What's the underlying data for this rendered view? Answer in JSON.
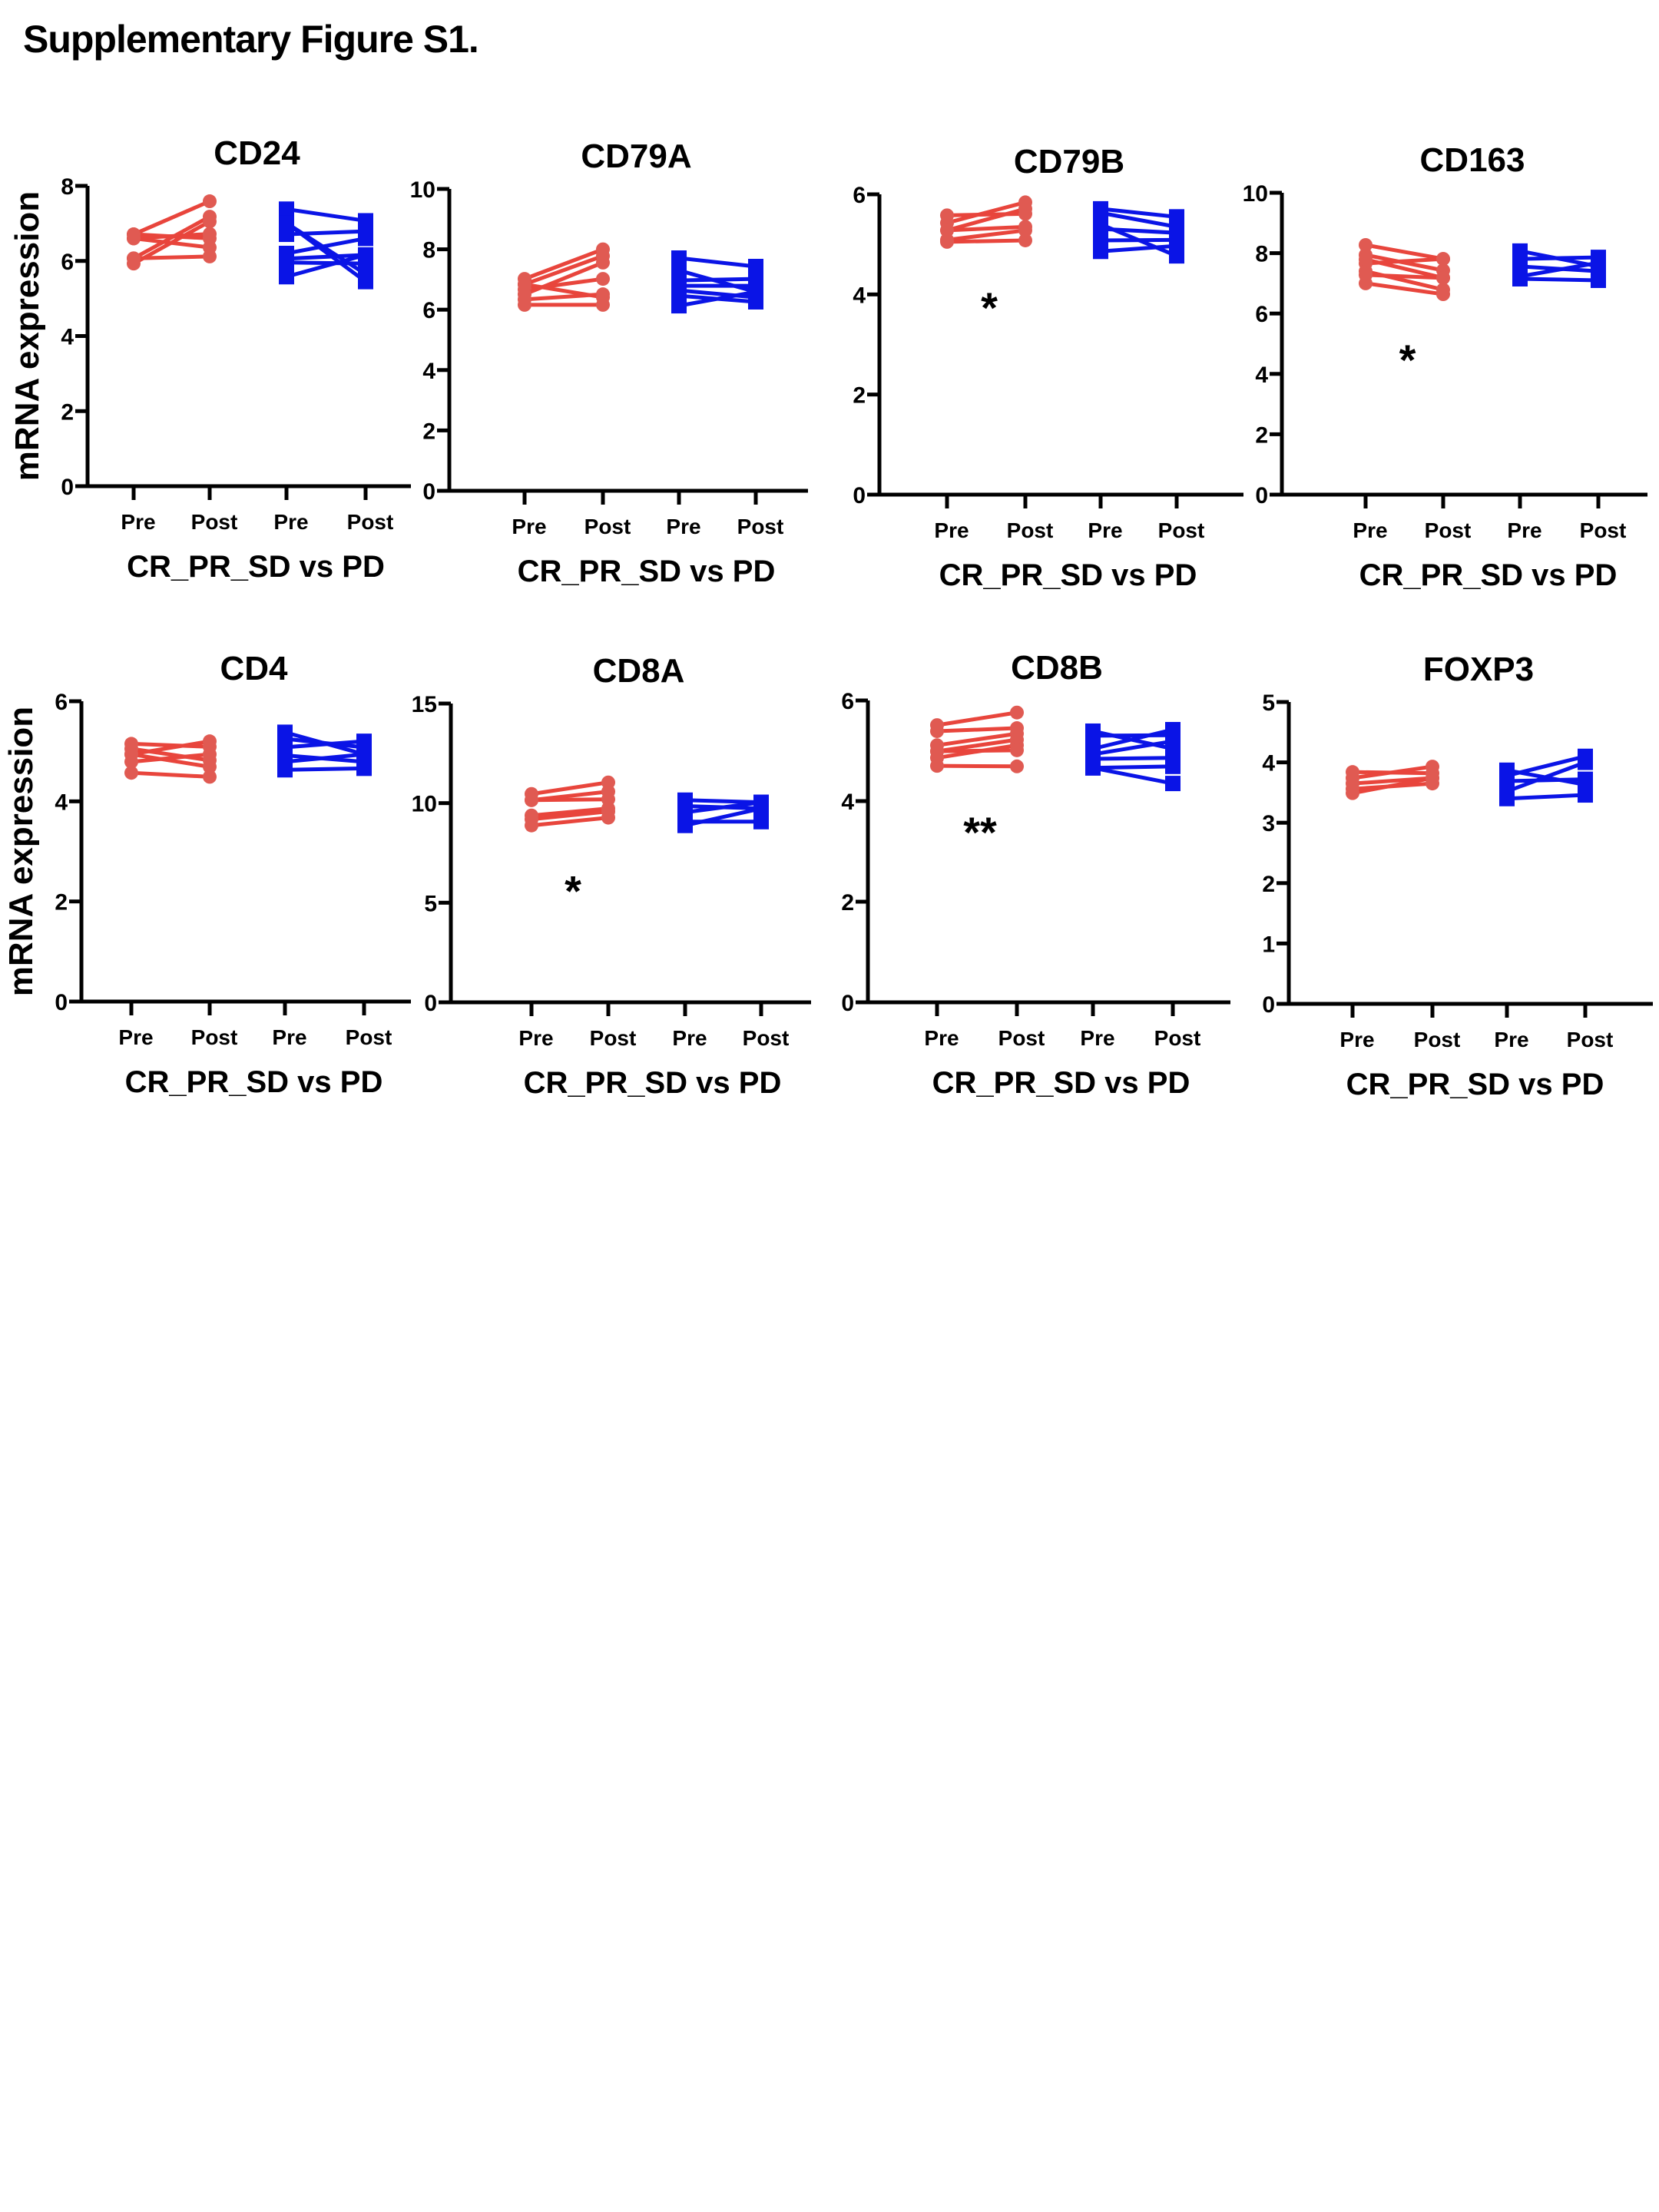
{
  "figure_title": "Supplementary Figure S1.",
  "colors": {
    "responders": "#e8453c",
    "responders_marker": "#e05a52",
    "progressors": "#0a14e6",
    "axis": "#000000"
  },
  "chart_data": [
    {
      "type": "line",
      "title": "CD24",
      "ylabel": "mRNA expression",
      "xlabel": "CR_PR_SD vs PD",
      "categories": [
        "Pre",
        "Post",
        "Pre",
        "Post"
      ],
      "ylim": [
        0,
        8
      ],
      "yticks": [
        0,
        2,
        4,
        6,
        8
      ],
      "significance": "",
      "series": [
        {
          "name": "CR_PR_SD",
          "marker": "circle",
          "pairs": [
            [
              6.71,
              7.59
            ],
            [
              6.6,
              6.72
            ],
            [
              6.71,
              6.6
            ],
            [
              6.07,
              7.18
            ],
            [
              5.93,
              7.05
            ],
            [
              6.6,
              6.36
            ],
            [
              6.07,
              6.12
            ]
          ]
        },
        {
          "name": "PD",
          "marker": "square",
          "pairs": [
            [
              7.38,
              7.07
            ],
            [
              7.01,
              5.65
            ],
            [
              7.01,
              5.45
            ],
            [
              6.71,
              6.79
            ],
            [
              6.2,
              6.6
            ],
            [
              6.06,
              6.16
            ],
            [
              5.96,
              5.93
            ],
            [
              5.58,
              6.16
            ]
          ]
        }
      ]
    },
    {
      "type": "line",
      "title": "CD79A",
      "ylabel": "",
      "xlabel": "CR_PR_SD vs PD",
      "categories": [
        "Pre",
        "Post",
        "Pre",
        "Post"
      ],
      "ylim": [
        0,
        10
      ],
      "yticks": [
        0,
        2,
        4,
        6,
        8,
        10
      ],
      "significance": "",
      "series": [
        {
          "name": "CR_PR_SD",
          "marker": "circle",
          "pairs": [
            [
              7.02,
              8.0
            ],
            [
              6.84,
              7.78
            ],
            [
              6.67,
              7.02
            ],
            [
              6.51,
              7.56
            ],
            [
              6.34,
              6.51
            ],
            [
              6.16,
              6.16
            ],
            [
              6.84,
              6.41
            ]
          ]
        },
        {
          "name": "PD",
          "marker": "square",
          "pairs": [
            [
              7.71,
              7.43
            ],
            [
              7.3,
              6.59
            ],
            [
              6.97,
              7.02
            ],
            [
              6.79,
              6.79
            ],
            [
              6.64,
              6.41
            ],
            [
              6.46,
              6.26
            ],
            [
              6.13,
              6.59
            ]
          ]
        }
      ]
    },
    {
      "type": "line",
      "title": "CD79B",
      "ylabel": "",
      "xlabel": "CR_PR_SD vs PD",
      "categories": [
        "Pre",
        "Post",
        "Pre",
        "Post"
      ],
      "ylim": [
        0,
        6
      ],
      "yticks": [
        0,
        2,
        4,
        6
      ],
      "significance": "*",
      "series": [
        {
          "name": "CR_PR_SD",
          "marker": "circle",
          "pairs": [
            [
              5.58,
              5.61
            ],
            [
              5.43,
              5.84
            ],
            [
              5.28,
              5.71
            ],
            [
              5.28,
              5.35
            ],
            [
              5.09,
              5.28
            ],
            [
              5.05,
              5.08
            ]
          ]
        },
        {
          "name": "PD",
          "marker": "square",
          "pairs": [
            [
              5.71,
              5.55
            ],
            [
              5.63,
              5.35
            ],
            [
              5.4,
              4.77
            ],
            [
              5.31,
              5.23
            ],
            [
              5.08,
              5.09
            ],
            [
              4.86,
              4.97
            ]
          ]
        }
      ]
    },
    {
      "type": "line",
      "title": "CD163",
      "ylabel": "",
      "xlabel": "CR_PR_SD vs PD",
      "categories": [
        "Pre",
        "Post",
        "Pre",
        "Post"
      ],
      "ylim": [
        0,
        10
      ],
      "yticks": [
        0,
        2,
        4,
        6,
        8,
        10
      ],
      "significance": "*",
      "series": [
        {
          "name": "CR_PR_SD",
          "marker": "circle",
          "pairs": [
            [
              8.27,
              7.81
            ],
            [
              7.94,
              7.43
            ],
            [
              7.79,
              7.18
            ],
            [
              7.66,
              7.81
            ],
            [
              7.4,
              6.79
            ],
            [
              7.28,
              7.18
            ],
            [
              7.0,
              6.64
            ]
          ]
        },
        {
          "name": "PD",
          "marker": "square",
          "pairs": [
            [
              8.07,
              7.56
            ],
            [
              7.81,
              7.86
            ],
            [
              7.56,
              7.4
            ],
            [
              7.23,
              7.68
            ],
            [
              7.15,
              7.1
            ]
          ]
        }
      ]
    },
    {
      "type": "line",
      "title": "CD4",
      "ylabel": "mRNA expression",
      "xlabel": "CR_PR_SD vs PD",
      "categories": [
        "Pre",
        "Post",
        "Pre",
        "Post"
      ],
      "ylim": [
        0,
        6
      ],
      "yticks": [
        0,
        2,
        4,
        6
      ],
      "significance": "",
      "series": [
        {
          "name": "CR_PR_SD",
          "marker": "circle",
          "pairs": [
            [
              5.15,
              5.09
            ],
            [
              5.05,
              4.82
            ],
            [
              4.94,
              5.2
            ],
            [
              4.79,
              4.94
            ],
            [
              4.94,
              4.69
            ],
            [
              4.57,
              4.49
            ]
          ]
        },
        {
          "name": "PD",
          "marker": "square",
          "pairs": [
            [
              5.38,
              4.94
            ],
            [
              5.25,
              5.08
            ],
            [
              5.08,
              5.2
            ],
            [
              4.92,
              4.79
            ],
            [
              4.79,
              4.94
            ],
            [
              4.63,
              4.66
            ]
          ]
        }
      ]
    },
    {
      "type": "line",
      "title": "CD8A",
      "ylabel": "",
      "xlabel": "CR_PR_SD vs PD",
      "categories": [
        "Pre",
        "Post",
        "Pre",
        "Post"
      ],
      "ylim": [
        0,
        15
      ],
      "yticks": [
        0,
        5,
        10,
        15
      ],
      "significance": "*",
      "series": [
        {
          "name": "CR_PR_SD",
          "marker": "circle",
          "pairs": [
            [
              10.46,
              11.04
            ],
            [
              10.15,
              10.58
            ],
            [
              10.15,
              10.19
            ],
            [
              9.38,
              9.73
            ],
            [
              9.19,
              9.58
            ],
            [
              8.88,
              9.27
            ]
          ]
        },
        {
          "name": "PD",
          "marker": "square",
          "pairs": [
            [
              10.15,
              10.04
            ],
            [
              9.85,
              9.73
            ],
            [
              9.54,
              10.04
            ],
            [
              9.07,
              9.07
            ],
            [
              8.88,
              9.73
            ]
          ]
        }
      ]
    },
    {
      "type": "line",
      "title": "CD8B",
      "ylabel": "",
      "xlabel": "CR_PR_SD vs PD",
      "categories": [
        "Pre",
        "Post",
        "Pre",
        "Post"
      ],
      "ylim": [
        0,
        6
      ],
      "yticks": [
        0,
        2,
        4,
        6
      ],
      "significance": "**",
      "series": [
        {
          "name": "CR_PR_SD",
          "marker": "circle",
          "pairs": [
            [
              5.51,
              5.76
            ],
            [
              5.39,
              5.45
            ],
            [
              5.11,
              5.34
            ],
            [
              4.99,
              5.22
            ],
            [
              4.86,
              5.11
            ],
            [
              4.99,
              5.01
            ],
            [
              4.7,
              4.69
            ]
          ]
        },
        {
          "name": "PD",
          "marker": "square",
          "pairs": [
            [
              5.39,
              5.04
            ],
            [
              5.3,
              5.31
            ],
            [
              5.04,
              5.42
            ],
            [
              4.93,
              5.19
            ],
            [
              4.84,
              4.86
            ],
            [
              4.66,
              4.69
            ],
            [
              4.66,
              4.35
            ]
          ]
        }
      ]
    },
    {
      "type": "line",
      "title": "FOXP3",
      "ylabel": "",
      "xlabel": "CR_PR_SD vs PD",
      "categories": [
        "Pre",
        "Post",
        "Pre",
        "Post"
      ],
      "ylim": [
        0,
        5
      ],
      "yticks": [
        0,
        1,
        2,
        3,
        4,
        5
      ],
      "significance": "",
      "series": [
        {
          "name": "CR_PR_SD",
          "marker": "circle",
          "pairs": [
            [
              3.84,
              3.82
            ],
            [
              3.74,
              3.93
            ],
            [
              3.65,
              3.74
            ],
            [
              3.56,
              3.65
            ],
            [
              3.49,
              3.74
            ]
          ]
        },
        {
          "name": "PD",
          "marker": "square",
          "pairs": [
            [
              3.87,
              3.63
            ],
            [
              3.78,
              4.1
            ],
            [
              3.69,
              3.72
            ],
            [
              3.52,
              4.0
            ],
            [
              3.4,
              3.46
            ]
          ]
        }
      ]
    }
  ]
}
